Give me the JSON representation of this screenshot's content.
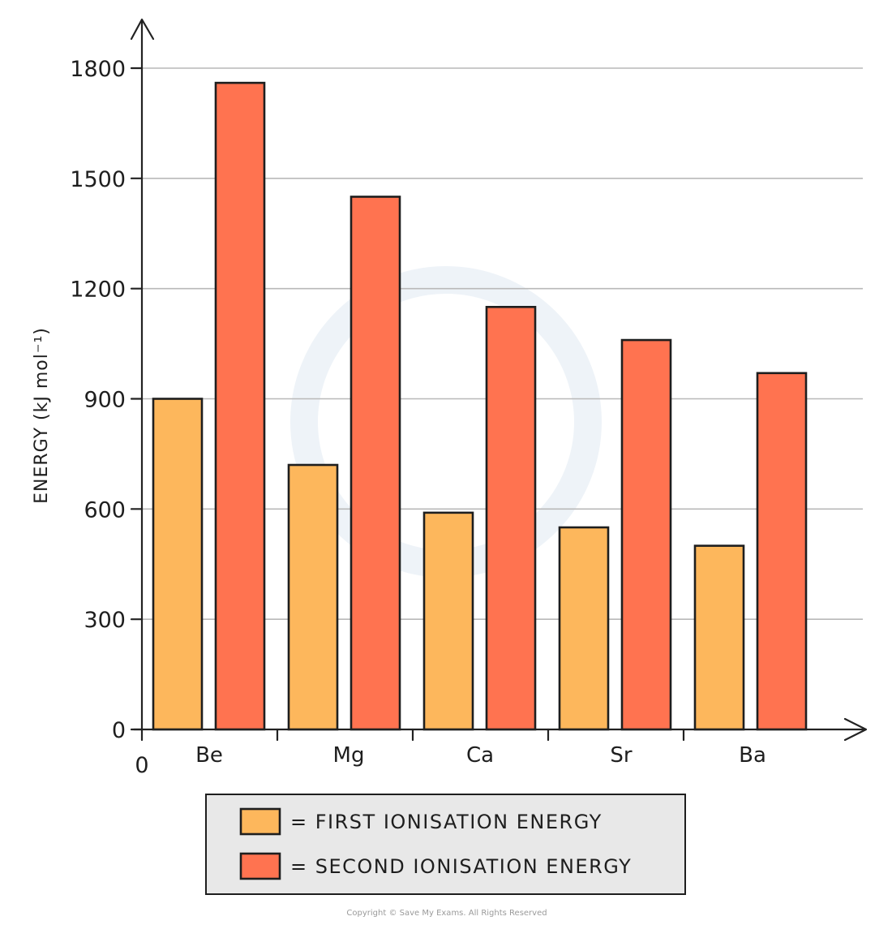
{
  "chart_data": {
    "type": "bar",
    "categories": [
      "Be",
      "Mg",
      "Ca",
      "Sr",
      "Ba"
    ],
    "series": [
      {
        "name": "= FIRST  IONISATION  ENERGY",
        "color": "#fdb75c",
        "values": [
          900,
          720,
          590,
          550,
          500
        ]
      },
      {
        "name": "= SECOND  IONISATION  ENERGY",
        "color": "#ff7350",
        "values": [
          1760,
          1450,
          1150,
          1060,
          970
        ]
      }
    ],
    "yticks": [
      0,
      300,
      600,
      900,
      1200,
      1500,
      1800
    ],
    "ylim": [
      0,
      1800
    ],
    "ylabel": "ENERGY  (kJ mol⁻¹)",
    "origin_label": "0",
    "grid": true,
    "legend_position": "bottom"
  },
  "copyright": "Copyright © Save My Exams. All Rights Reserved"
}
